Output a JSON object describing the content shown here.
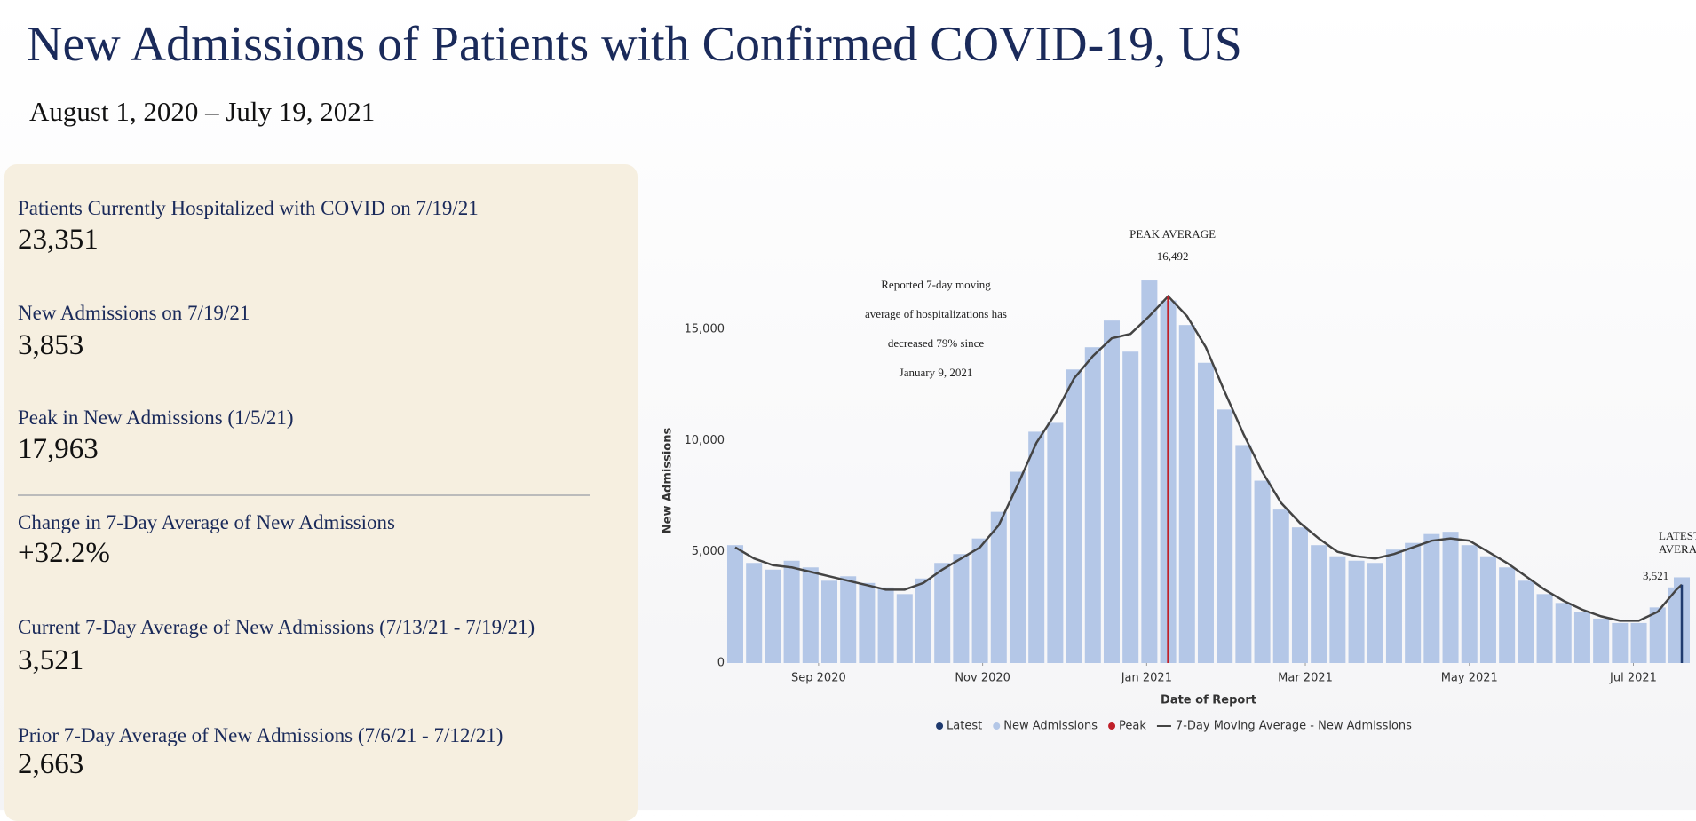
{
  "header": {
    "title": "New Admissions of Patients with Confirmed COVID-19, US",
    "subtitle": "August 1, 2020 – July 19, 2021"
  },
  "stats": [
    {
      "label": "Patients Currently Hospitalized with COVID on 7/19/21",
      "value": "23,351"
    },
    {
      "label": "New Admissions on 7/19/21",
      "value": "3,853"
    },
    {
      "label": "Peak in New Admissions (1/5/21)",
      "value": "17,963"
    },
    {
      "label": "Change in 7-Day Average of New Admissions",
      "value": "+32.2%"
    },
    {
      "label": "Current 7-Day Average of New Admissions (7/13/21 - 7/19/21)",
      "value": "3,521"
    },
    {
      "label": "Prior 7-Day Average of New Admissions (7/6/21 - 7/12/21)",
      "value": "2,663"
    }
  ],
  "chart_data": {
    "type": "bar-line",
    "x_label": "Date of Report",
    "y_label": "New Admissions",
    "annotation": [
      "Reported 7-day moving",
      "average of hospitalizations has",
      "decreased 79% since",
      "January 9, 2021"
    ],
    "x": [
      "2020-08-01",
      "2020-08-08",
      "2020-08-15",
      "2020-08-22",
      "2020-08-29",
      "2020-09-05",
      "2020-09-12",
      "2020-09-19",
      "2020-09-26",
      "2020-10-03",
      "2020-10-10",
      "2020-10-17",
      "2020-10-24",
      "2020-10-31",
      "2020-11-07",
      "2020-11-14",
      "2020-11-21",
      "2020-11-28",
      "2020-12-05",
      "2020-12-12",
      "2020-12-19",
      "2020-12-26",
      "2021-01-02",
      "2021-01-09",
      "2021-01-16",
      "2021-01-23",
      "2021-01-30",
      "2021-02-06",
      "2021-02-13",
      "2021-02-20",
      "2021-02-27",
      "2021-03-06",
      "2021-03-13",
      "2021-03-20",
      "2021-03-27",
      "2021-04-03",
      "2021-04-10",
      "2021-04-17",
      "2021-04-24",
      "2021-05-01",
      "2021-05-08",
      "2021-05-15",
      "2021-05-22",
      "2021-05-29",
      "2021-06-05",
      "2021-06-12",
      "2021-06-19",
      "2021-06-26",
      "2021-07-03",
      "2021-07-10",
      "2021-07-17",
      "2021-07-19"
    ],
    "series": [
      {
        "name": "New Admissions",
        "color": "#b4c7e7",
        "values": [
          5300,
          4500,
          4200,
          4600,
          4300,
          3700,
          3900,
          3600,
          3400,
          3100,
          3800,
          4500,
          4900,
          5600,
          6800,
          8600,
          10400,
          10800,
          13200,
          14200,
          15400,
          14000,
          17200,
          16300,
          15200,
          13500,
          11400,
          9800,
          8200,
          6900,
          6100,
          5300,
          4800,
          4600,
          4500,
          5100,
          5400,
          5800,
          5900,
          5300,
          4800,
          4300,
          3700,
          3100,
          2700,
          2300,
          2000,
          1800,
          1800,
          2500,
          3400,
          3853
        ]
      },
      {
        "name": "7-Day Moving Average - New Admissions",
        "color": "#444444",
        "values": [
          5200,
          4700,
          4400,
          4300,
          4100,
          3900,
          3700,
          3500,
          3300,
          3300,
          3600,
          4200,
          4700,
          5200,
          6200,
          8000,
          9900,
          11200,
          12800,
          13800,
          14600,
          14800,
          15600,
          16492,
          15600,
          14200,
          12200,
          10300,
          8600,
          7200,
          6300,
          5600,
          5000,
          4800,
          4700,
          4900,
          5200,
          5500,
          5600,
          5500,
          5000,
          4500,
          3900,
          3300,
          2800,
          2400,
          2100,
          1900,
          1900,
          2300,
          3300,
          3521
        ]
      }
    ],
    "peak": {
      "name": "Peak",
      "label": "PEAK AVERAGE",
      "x": "2021-01-09",
      "value": 16492,
      "value_label": "16,492",
      "color": "#c0202a"
    },
    "latest": {
      "name": "Latest",
      "label": [
        "LATEST",
        "AVERAGE"
      ],
      "x": "2021-07-19",
      "value": 3521,
      "value_label": "3,521",
      "color": "#1f3a6e"
    },
    "xlim": [
      "2020-08-01",
      "2021-07-19"
    ],
    "xticks": [
      {
        "value": "2020-09-01",
        "label": "Sep 2020"
      },
      {
        "value": "2020-11-01",
        "label": "Nov 2020"
      },
      {
        "value": "2021-01-01",
        "label": "Jan 2021"
      },
      {
        "value": "2021-03-01",
        "label": "Mar 2021"
      },
      {
        "value": "2021-05-01",
        "label": "May 2021"
      },
      {
        "value": "2021-07-01",
        "label": "Jul 2021"
      }
    ],
    "ylim": [
      0,
      18000
    ],
    "yticks": [
      0,
      {
        "value": 5000,
        "label": "5,000"
      },
      {
        "value": 10000,
        "label": "10,000"
      },
      {
        "value": 15000,
        "label": "15,000"
      }
    ]
  }
}
